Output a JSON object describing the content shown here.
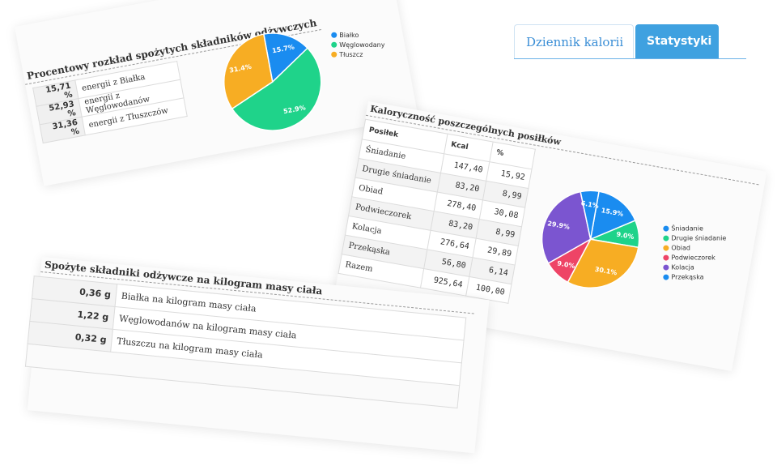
{
  "tabs": [
    {
      "label": "Dziennik kalorii",
      "active": false
    },
    {
      "label": "Statystyki",
      "active": true
    }
  ],
  "macro_card": {
    "title": "Procentowy rozkład spożytych składników odżywczych",
    "rows": [
      {
        "value": "15,71 %",
        "label": "energii z Białka"
      },
      {
        "value": "52,93 %",
        "label": "energii z Węglowodanów"
      },
      {
        "value": "31,36 %",
        "label": "energii z Tłuszczów"
      }
    ]
  },
  "meal_card": {
    "title": "Kaloryczność poszczególnych posiłków",
    "headers": {
      "meal": "Posiłek",
      "kcal": "Kcal",
      "pct": "%"
    },
    "rows": [
      {
        "meal": "Śniadanie",
        "kcal": "147,40",
        "pct": "15,92"
      },
      {
        "meal": "Drugie śniadanie",
        "kcal": "83,20",
        "pct": "8,99"
      },
      {
        "meal": "Obiad",
        "kcal": "278,40",
        "pct": "30,08"
      },
      {
        "meal": "Podwieczorek",
        "kcal": "83,20",
        "pct": "8,99"
      },
      {
        "meal": "Kolacja",
        "kcal": "276,64",
        "pct": "29,89"
      },
      {
        "meal": "Przekąska",
        "kcal": "56,80",
        "pct": "6,14"
      },
      {
        "meal": "Razem",
        "kcal": "925,64",
        "pct": "100,00"
      }
    ]
  },
  "kg_card": {
    "title": "Spożyte składniki odżywcze na kilogram masy ciała",
    "rows": [
      {
        "value": "0,36 g",
        "label": "Białka na kilogram masy ciała"
      },
      {
        "value": "1,22 g",
        "label": "Węglowodanów na kilogram masy ciała"
      },
      {
        "value": "0,32 g",
        "label": "Tłuszczu na kilogram masy ciała"
      }
    ]
  },
  "chart_data": [
    {
      "type": "pie",
      "labels": [
        "Białko",
        "Węglowodany",
        "Tłuszcz"
      ],
      "values": [
        15.7,
        52.9,
        31.4
      ],
      "slice_labels": [
        "15.7%",
        "52.9%",
        "31.4%"
      ],
      "colors": [
        "#1a8cf0",
        "#1fd38a",
        "#f7ad23"
      ],
      "legend_position": "right"
    },
    {
      "type": "pie",
      "labels": [
        "Śniadanie",
        "Drugie śniadanie",
        "Obiad",
        "Podwieczorek",
        "Kolacja",
        "Przekąska"
      ],
      "values": [
        15.9,
        9.0,
        30.1,
        9.0,
        29.9,
        6.1
      ],
      "slice_labels": [
        "15.9%",
        "9.0%",
        "30.1%",
        "9.0%",
        "29.9%",
        "6.1%"
      ],
      "colors": [
        "#1a8cf0",
        "#1fd38a",
        "#f7ad23",
        "#ee4466",
        "#7b55d0",
        "#1a8cf0"
      ],
      "legend_position": "right"
    }
  ]
}
